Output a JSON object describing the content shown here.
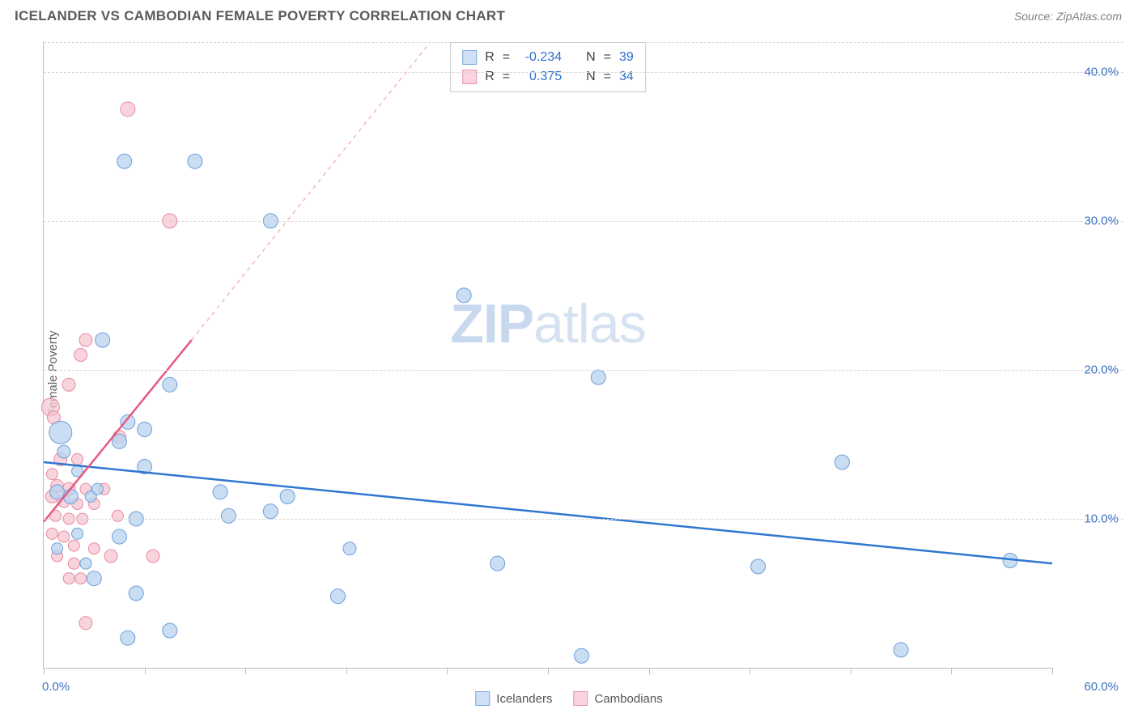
{
  "title": "ICELANDER VS CAMBODIAN FEMALE POVERTY CORRELATION CHART",
  "source": "Source: ZipAtlas.com",
  "ylabel": "Female Poverty",
  "watermark": {
    "bold": "ZIP",
    "rest": "atlas"
  },
  "chart": {
    "type": "scatter",
    "xlim": [
      0,
      60
    ],
    "ylim": [
      0,
      42
    ],
    "x_ticks": [
      0,
      6,
      12,
      18,
      24,
      30,
      36,
      42,
      48,
      54,
      60
    ],
    "x_tick_labels": {
      "0": "0.0%",
      "60": "60.0%"
    },
    "y_gridlines": [
      10,
      20,
      30,
      40
    ],
    "y_tick_labels": {
      "10": "10.0%",
      "20": "20.0%",
      "30": "30.0%",
      "40": "40.0%"
    },
    "background_color": "#ffffff",
    "grid_color": "#d6d6d6",
    "axis_color": "#bdbdbd",
    "tick_label_color": "#3b72c4"
  },
  "series": [
    {
      "name": "Icelanders",
      "color_fill": "#b7d1ef",
      "color_stroke": "#6e9fd8",
      "swatch_fill": "#cfe0f6",
      "swatch_border": "#7aa7db",
      "marker_opacity": 0.75,
      "marker_r_default": 9,
      "trend": {
        "x1": 0,
        "y1": 13.8,
        "x2": 60,
        "y2": 7.0,
        "color": "#2f77d0",
        "width": 2.5,
        "dash": ""
      },
      "stats": {
        "R": "-0.234",
        "N": "39"
      },
      "points": [
        {
          "x": 4.8,
          "y": 34.0,
          "r": 9
        },
        {
          "x": 9.0,
          "y": 34.0,
          "r": 9
        },
        {
          "x": 13.5,
          "y": 30.0,
          "r": 9
        },
        {
          "x": 25.0,
          "y": 25.0,
          "r": 9
        },
        {
          "x": 3.5,
          "y": 22.0,
          "r": 9
        },
        {
          "x": 33.0,
          "y": 19.5,
          "r": 9
        },
        {
          "x": 7.5,
          "y": 19.0,
          "r": 9
        },
        {
          "x": 1.0,
          "y": 15.8,
          "r": 14
        },
        {
          "x": 5.0,
          "y": 16.5,
          "r": 9
        },
        {
          "x": 6.0,
          "y": 16.0,
          "r": 9
        },
        {
          "x": 4.5,
          "y": 15.2,
          "r": 9
        },
        {
          "x": 47.5,
          "y": 13.8,
          "r": 9
        },
        {
          "x": 6.0,
          "y": 13.5,
          "r": 9
        },
        {
          "x": 0.8,
          "y": 11.8,
          "r": 9
        },
        {
          "x": 1.6,
          "y": 11.5,
          "r": 9
        },
        {
          "x": 2.8,
          "y": 11.5,
          "r": 7
        },
        {
          "x": 10.5,
          "y": 11.8,
          "r": 9
        },
        {
          "x": 14.5,
          "y": 11.5,
          "r": 9
        },
        {
          "x": 5.5,
          "y": 10.0,
          "r": 9
        },
        {
          "x": 11.0,
          "y": 10.2,
          "r": 9
        },
        {
          "x": 13.5,
          "y": 10.5,
          "r": 9
        },
        {
          "x": 2.0,
          "y": 9.0,
          "r": 7
        },
        {
          "x": 4.5,
          "y": 8.8,
          "r": 9
        },
        {
          "x": 18.2,
          "y": 8.0,
          "r": 8
        },
        {
          "x": 27.0,
          "y": 7.0,
          "r": 9
        },
        {
          "x": 42.5,
          "y": 6.8,
          "r": 9
        },
        {
          "x": 57.5,
          "y": 7.2,
          "r": 9
        },
        {
          "x": 0.8,
          "y": 8.0,
          "r": 7
        },
        {
          "x": 2.5,
          "y": 7.0,
          "r": 7
        },
        {
          "x": 3.0,
          "y": 6.0,
          "r": 9
        },
        {
          "x": 5.5,
          "y": 5.0,
          "r": 9
        },
        {
          "x": 17.5,
          "y": 4.8,
          "r": 9
        },
        {
          "x": 5.0,
          "y": 2.0,
          "r": 9
        },
        {
          "x": 7.5,
          "y": 2.5,
          "r": 9
        },
        {
          "x": 32.0,
          "y": 0.8,
          "r": 9
        },
        {
          "x": 51.0,
          "y": 1.2,
          "r": 9
        },
        {
          "x": 1.2,
          "y": 14.5,
          "r": 8
        },
        {
          "x": 2.0,
          "y": 13.2,
          "r": 7
        },
        {
          "x": 3.2,
          "y": 12.0,
          "r": 7
        }
      ]
    },
    {
      "name": "Cambodians",
      "color_fill": "#f6c6d2",
      "color_stroke": "#e88ba3",
      "swatch_fill": "#f9d4de",
      "swatch_border": "#e795ac",
      "marker_opacity": 0.75,
      "marker_r_default": 9,
      "trend": {
        "x1": 0,
        "y1": 9.8,
        "x2": 8.8,
        "y2": 22.0,
        "color": "#e55a80",
        "width": 2.5,
        "dash": ""
      },
      "trend_ext": {
        "x1": 8.8,
        "y1": 22.0,
        "x2": 23.0,
        "y2": 42.0,
        "color": "#f2b6c5",
        "width": 1.5,
        "dash": "5,5"
      },
      "stats": {
        "R": "0.375",
        "N": "34"
      },
      "points": [
        {
          "x": 5.0,
          "y": 37.5,
          "r": 9
        },
        {
          "x": 7.5,
          "y": 30.0,
          "r": 9
        },
        {
          "x": 2.5,
          "y": 22.0,
          "r": 8
        },
        {
          "x": 2.2,
          "y": 21.0,
          "r": 8
        },
        {
          "x": 1.5,
          "y": 19.0,
          "r": 8
        },
        {
          "x": 0.4,
          "y": 17.5,
          "r": 11
        },
        {
          "x": 0.6,
          "y": 16.8,
          "r": 8
        },
        {
          "x": 4.5,
          "y": 15.5,
          "r": 8
        },
        {
          "x": 1.0,
          "y": 14.0,
          "r": 8
        },
        {
          "x": 2.0,
          "y": 14.0,
          "r": 7
        },
        {
          "x": 0.5,
          "y": 13.0,
          "r": 7
        },
        {
          "x": 0.8,
          "y": 12.2,
          "r": 8
        },
        {
          "x": 1.5,
          "y": 12.0,
          "r": 8
        },
        {
          "x": 2.5,
          "y": 12.0,
          "r": 7
        },
        {
          "x": 3.6,
          "y": 12.0,
          "r": 7
        },
        {
          "x": 0.5,
          "y": 11.5,
          "r": 8
        },
        {
          "x": 1.2,
          "y": 11.2,
          "r": 8
        },
        {
          "x": 2.0,
          "y": 11.0,
          "r": 7
        },
        {
          "x": 3.0,
          "y": 11.0,
          "r": 7
        },
        {
          "x": 0.7,
          "y": 10.2,
          "r": 7
        },
        {
          "x": 1.5,
          "y": 10.0,
          "r": 7
        },
        {
          "x": 2.3,
          "y": 10.0,
          "r": 7
        },
        {
          "x": 4.4,
          "y": 10.2,
          "r": 7
        },
        {
          "x": 0.5,
          "y": 9.0,
          "r": 7
        },
        {
          "x": 1.2,
          "y": 8.8,
          "r": 7
        },
        {
          "x": 1.8,
          "y": 8.2,
          "r": 7
        },
        {
          "x": 3.0,
          "y": 8.0,
          "r": 7
        },
        {
          "x": 0.8,
          "y": 7.5,
          "r": 7
        },
        {
          "x": 1.8,
          "y": 7.0,
          "r": 7
        },
        {
          "x": 4.0,
          "y": 7.5,
          "r": 8
        },
        {
          "x": 6.5,
          "y": 7.5,
          "r": 8
        },
        {
          "x": 1.5,
          "y": 6.0,
          "r": 7
        },
        {
          "x": 2.2,
          "y": 6.0,
          "r": 7
        },
        {
          "x": 2.5,
          "y": 3.0,
          "r": 8
        }
      ]
    }
  ],
  "legend": {
    "items": [
      {
        "label": "Icelanders",
        "fill": "#cfe0f6",
        "border": "#7aa7db"
      },
      {
        "label": "Cambodians",
        "fill": "#f9d4de",
        "border": "#e795ac"
      }
    ]
  }
}
